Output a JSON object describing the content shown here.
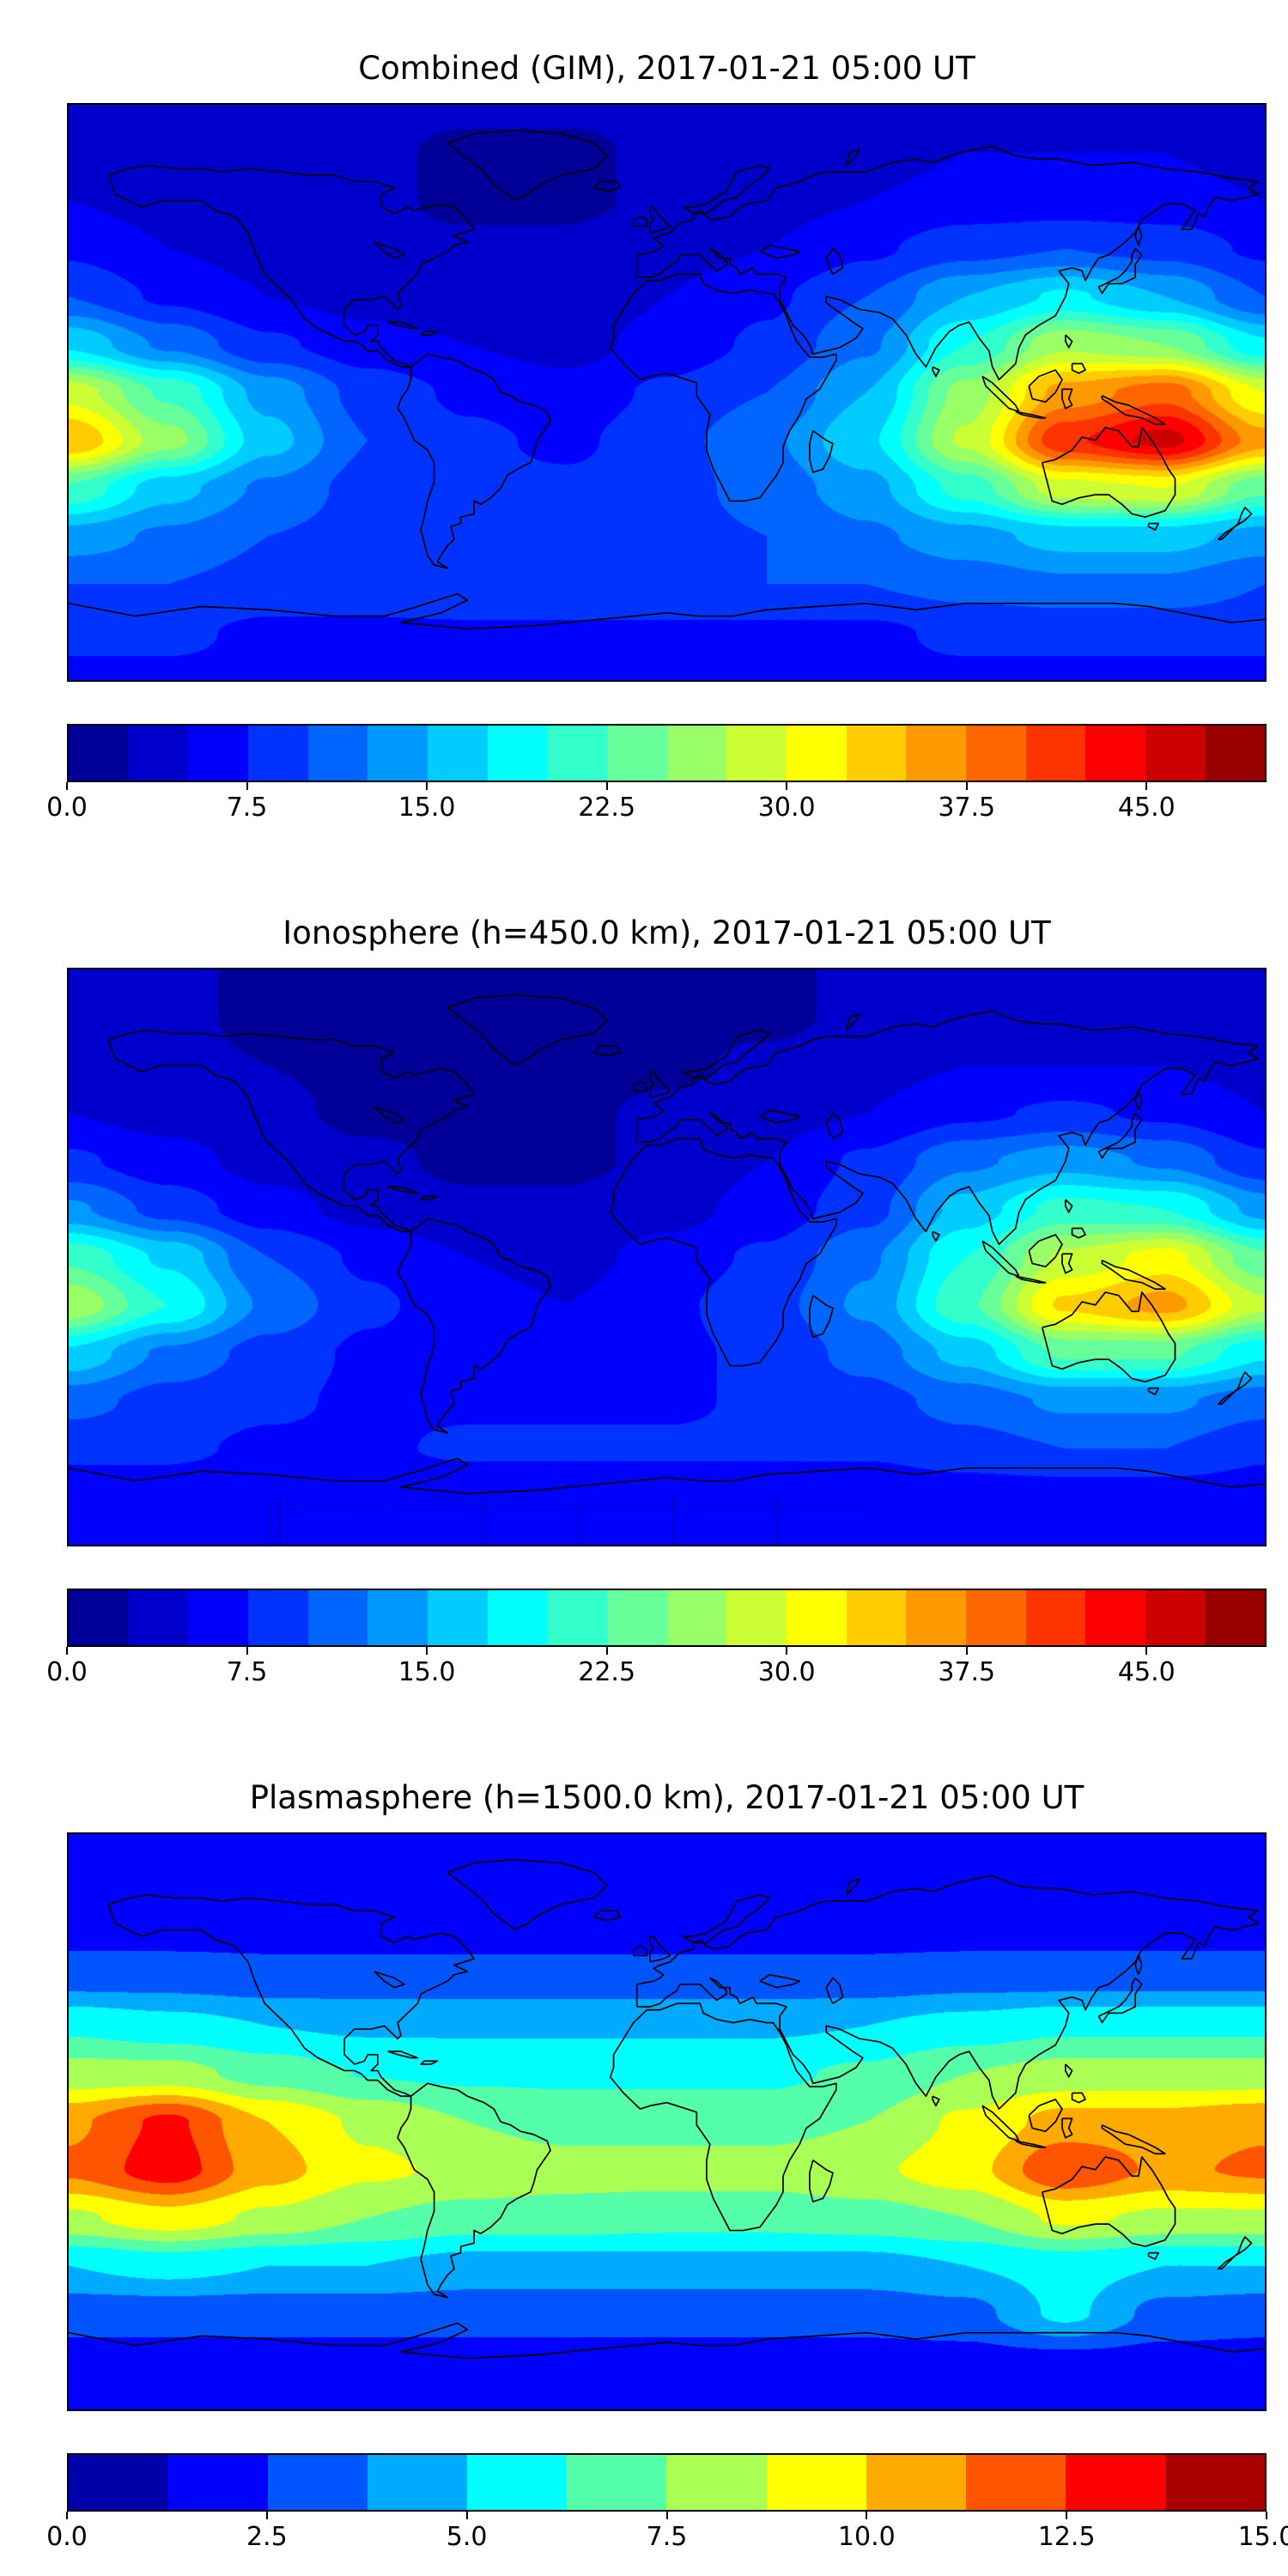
{
  "chart_data": [
    {
      "type": "heatmap",
      "title": "Combined (GIM), 2017-01-21 05:00 UT",
      "projection": "equirectangular-world-map",
      "units": "TECU",
      "colormap": "jet",
      "vmin": 0,
      "vmax": 50,
      "contour_step": 2.5,
      "colorbar_ticks": [
        "0.0",
        "7.5",
        "15.0",
        "22.5",
        "30.0",
        "37.5",
        "45.0"
      ],
      "colorbar_tick_values": [
        0,
        7.5,
        15,
        22.5,
        30,
        37.5,
        45
      ],
      "lon": [
        -180,
        -150,
        -120,
        -90,
        -60,
        -30,
        0,
        30,
        60,
        90,
        120,
        150,
        180
      ],
      "lat": [
        90,
        75,
        60,
        45,
        30,
        15,
        0,
        -15,
        -30,
        -45,
        -60,
        -75,
        -90
      ],
      "values": [
        [
          4,
          4,
          3,
          3,
          3,
          3,
          3,
          3,
          4,
          4,
          4,
          4,
          4
        ],
        [
          4,
          4,
          3,
          3,
          2,
          2,
          3,
          3,
          4,
          5,
          5,
          5,
          4
        ],
        [
          5,
          4,
          3,
          3,
          2,
          2,
          3,
          4,
          5,
          6,
          6,
          6,
          5
        ],
        [
          7,
          5,
          4,
          3,
          3,
          3,
          4,
          5,
          7,
          9,
          10,
          9,
          7
        ],
        [
          10,
          7,
          5,
          4,
          3,
          3,
          5,
          7,
          10,
          15,
          18,
          15,
          10
        ],
        [
          17,
          12,
          8,
          6,
          5,
          4,
          6,
          8,
          12,
          20,
          27,
          25,
          18
        ],
        [
          29,
          22,
          14,
          9,
          7,
          6,
          8,
          10,
          15,
          26,
          36,
          39,
          30
        ],
        [
          35,
          26,
          16,
          10,
          8,
          7,
          9,
          12,
          17,
          28,
          42,
          46,
          36
        ],
        [
          22,
          16,
          12,
          9,
          8,
          8,
          9,
          11,
          14,
          21,
          29,
          30,
          23
        ],
        [
          14,
          12,
          10,
          9,
          9,
          9,
          9,
          10,
          12,
          14,
          16,
          16,
          14
        ],
        [
          10,
          10,
          9,
          9,
          10,
          10,
          10,
          10,
          10,
          11,
          12,
          12,
          10
        ],
        [
          8,
          8,
          7,
          7,
          7,
          7,
          7,
          7,
          7,
          8,
          8,
          8,
          8
        ],
        [
          7,
          7,
          7,
          7,
          7,
          7,
          7,
          7,
          7,
          7,
          7,
          7,
          7
        ]
      ]
    },
    {
      "type": "heatmap",
      "title": "Ionosphere  (h=450.0 km), 2017-01-21 05:00 UT",
      "projection": "equirectangular-world-map",
      "units": "TECU",
      "colormap": "jet",
      "vmin": 0,
      "vmax": 50,
      "contour_step": 2.5,
      "colorbar_ticks": [
        "0.0",
        "7.5",
        "15.0",
        "22.5",
        "30.0",
        "37.5",
        "45.0"
      ],
      "colorbar_tick_values": [
        0,
        7.5,
        15,
        22.5,
        30,
        37.5,
        45
      ],
      "lon": [
        -180,
        -150,
        -120,
        -90,
        -60,
        -30,
        0,
        30,
        60,
        90,
        120,
        150,
        180
      ],
      "lat": [
        90,
        75,
        60,
        45,
        30,
        15,
        0,
        -15,
        -30,
        -45,
        -60,
        -75,
        -90
      ],
      "values": [
        [
          3,
          3,
          2,
          2,
          2,
          2,
          2,
          2,
          3,
          3,
          3,
          3,
          3
        ],
        [
          3,
          3,
          2,
          2,
          1.5,
          1.5,
          2,
          2,
          3,
          4,
          4,
          4,
          3
        ],
        [
          4,
          3,
          2.5,
          2,
          1.5,
          1.5,
          2,
          3,
          4,
          5,
          5,
          5,
          4
        ],
        [
          5,
          4,
          3,
          2,
          2,
          2,
          3,
          4,
          5,
          7,
          8,
          7,
          5
        ],
        [
          8,
          6,
          4,
          3,
          2,
          2,
          3,
          5,
          8,
          12,
          14,
          12,
          8
        ],
        [
          13,
          9,
          6,
          4,
          3,
          3,
          4,
          6,
          9,
          16,
          21,
          20,
          14
        ],
        [
          22,
          17,
          10,
          7,
          5,
          4,
          6,
          8,
          12,
          20,
          28,
          31,
          23
        ],
        [
          27,
          20,
          12,
          8,
          6,
          5,
          7,
          9,
          13,
          22,
          33,
          36,
          28
        ],
        [
          17,
          12,
          9,
          7,
          6,
          6,
          7,
          8,
          11,
          16,
          23,
          23,
          18
        ],
        [
          11,
          9,
          8,
          7,
          7,
          7,
          7,
          8,
          9,
          11,
          13,
          13,
          11
        ],
        [
          8,
          8,
          7,
          7,
          8,
          8,
          8,
          8,
          8,
          9,
          10,
          10,
          8
        ],
        [
          6,
          6,
          5,
          5,
          5,
          5,
          5,
          5,
          5,
          6,
          6,
          6,
          6
        ],
        [
          5,
          5,
          5,
          5,
          5,
          5,
          5,
          5,
          5,
          5,
          5,
          5,
          5
        ]
      ]
    },
    {
      "type": "heatmap",
      "title": "Plasmasphere (h=1500.0 km), 2017-01-21 05:00 UT",
      "projection": "equirectangular-world-map",
      "units": "TECU",
      "colormap": "jet",
      "vmin": 0,
      "vmax": 15,
      "contour_step": 1.25,
      "colorbar_ticks": [
        "0.0",
        "2.5",
        "5.0",
        "7.5",
        "10.0",
        "12.5",
        "15.0"
      ],
      "colorbar_tick_values": [
        0,
        2.5,
        5,
        7.5,
        10,
        12.5,
        15
      ],
      "lon": [
        -180,
        -150,
        -120,
        -90,
        -60,
        -30,
        0,
        30,
        60,
        90,
        120,
        150,
        180
      ],
      "lat": [
        90,
        75,
        60,
        45,
        30,
        15,
        0,
        -15,
        -30,
        -45,
        -60,
        -75,
        -90
      ],
      "values": [
        [
          1.5,
          1.5,
          1.5,
          1.5,
          1.5,
          1.5,
          1.5,
          1.5,
          1.5,
          1.5,
          1.5,
          1.5,
          1.5
        ],
        [
          1.5,
          1.5,
          1.5,
          1.5,
          1.5,
          1.5,
          1.5,
          1.5,
          1.5,
          1.5,
          1.5,
          1.5,
          1.5
        ],
        [
          2,
          2,
          2,
          2,
          2,
          2,
          2,
          2,
          2,
          2,
          2,
          2,
          2
        ],
        [
          3.2,
          3.2,
          3,
          3,
          3,
          3,
          3,
          3,
          3,
          3.2,
          3.2,
          3.2,
          3.2
        ],
        [
          6,
          5.5,
          5,
          4.8,
          4.8,
          4.8,
          4.8,
          4.8,
          5,
          5.5,
          6,
          6,
          6
        ],
        [
          8,
          8,
          7,
          6.2,
          6,
          6,
          6,
          6,
          6.5,
          7.5,
          8,
          8,
          8
        ],
        [
          11,
          12.8,
          10,
          8.5,
          7.5,
          7,
          7,
          7,
          7.5,
          9,
          10.5,
          10.5,
          11
        ],
        [
          11.5,
          13.2,
          10.5,
          9,
          8.5,
          8,
          8,
          8,
          8.5,
          9.5,
          12.4,
          11,
          11.5
        ],
        [
          8.5,
          9.5,
          8.5,
          7.5,
          7,
          7,
          6.8,
          6.8,
          7,
          7.5,
          9,
          8.5,
          8.5
        ],
        [
          5,
          5.5,
          5,
          5,
          4.5,
          4.5,
          4.5,
          4.5,
          4.5,
          5,
          5.5,
          5,
          5
        ],
        [
          3,
          3,
          3,
          3,
          3,
          3,
          3,
          3,
          3,
          3.3,
          5.3,
          3.3,
          3
        ],
        [
          2,
          2,
          2,
          2,
          2,
          2,
          2,
          2,
          2,
          2,
          2,
          2,
          2
        ],
        [
          1.5,
          1.5,
          1.5,
          1.5,
          1.5,
          1.5,
          1.5,
          1.5,
          1.5,
          1.5,
          1.5,
          1.5,
          1.5
        ]
      ]
    }
  ]
}
